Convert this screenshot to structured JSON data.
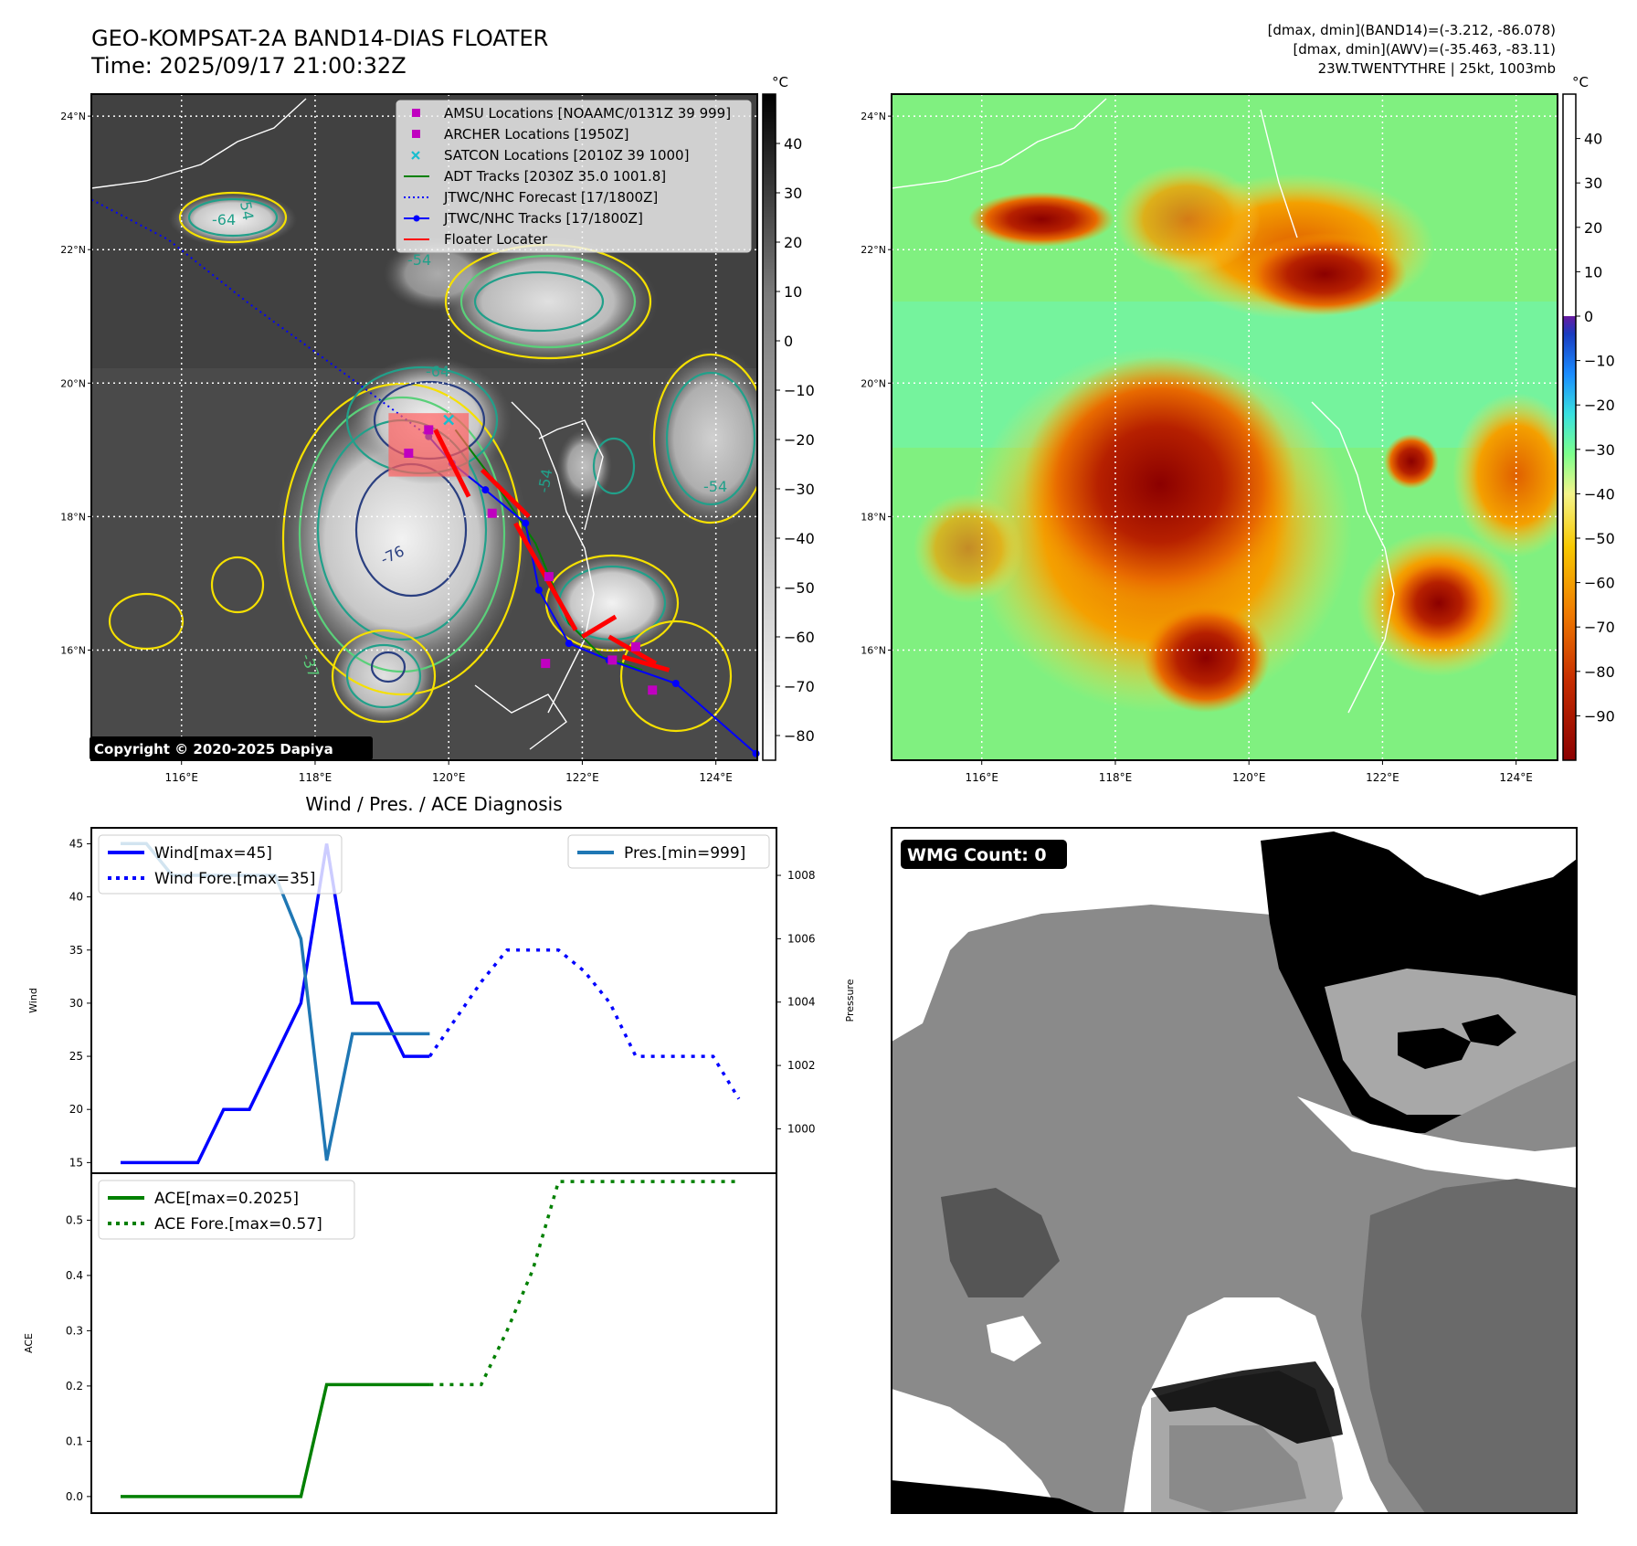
{
  "header": {
    "title_line1": "GEO-KOMPSAT-2A BAND14-DIAS FLOATER",
    "title_line2": "Time: 2025/09/17 21:00:32Z",
    "info_line1": "[dmax, dmin](BAND14)=(-3.212, -86.078)",
    "info_line2": "[dmax, dmin](AWV)=(-35.463, -83.11)",
    "info_line3": "23W.TWENTYTHRE | 25kt, 1003mb"
  },
  "map_axes": {
    "lat_labels": [
      "24°N",
      "22°N",
      "20°N",
      "18°N",
      "16°N"
    ],
    "lat_values": [
      24,
      22,
      20,
      18,
      16
    ],
    "lon_labels": [
      "116°E",
      "118°E",
      "120°E",
      "122°E",
      "124°E"
    ],
    "lon_values": [
      116,
      118,
      120,
      122,
      124
    ],
    "lon_range": [
      114.65,
      124.62
    ],
    "lat_range": [
      14.35,
      24.33
    ]
  },
  "colors": {
    "amsu": "#c000c0",
    "archer": "#c000c0",
    "satcon": "#17becf",
    "adt": "#008000",
    "jtwc": "#0000ff",
    "floater": "#ff0000",
    "wind": "#0000ff",
    "pres": "#1f77b4",
    "ace": "#008000",
    "copyright_bg": "#000000"
  },
  "ir_panel": {
    "legend": [
      {
        "label": "AMSU Locations [NOAAMC/0131Z 39 999]",
        "marker": "square",
        "color": "#c000c0"
      },
      {
        "label": "ARCHER Locations [1950Z]",
        "marker": "square",
        "color": "#c000c0"
      },
      {
        "label": "SATCON Locations [2010Z 39 1000]",
        "marker": "x",
        "color": "#17becf"
      },
      {
        "label": "ADT Tracks [2030Z 35.0 1001.8]",
        "marker": "line",
        "color": "#008000"
      },
      {
        "label": "JTWC/NHC Forecast [17/1800Z]",
        "marker": "dotted",
        "color": "#0000ff"
      },
      {
        "label": "JTWC/NHC Tracks [17/1800Z]",
        "marker": "line-dot",
        "color": "#0000ff"
      },
      {
        "label": "Floater Locater",
        "marker": "line",
        "color": "#ff0000"
      }
    ],
    "colorbar_unit": "°C",
    "colorbar_ticks": [
      "40",
      "30",
      "20",
      "10",
      "0",
      "−10",
      "−20",
      "−30",
      "−40",
      "−50",
      "−60",
      "−70",
      "−80"
    ],
    "colorbar_values": [
      40,
      30,
      20,
      10,
      0,
      -10,
      -20,
      -30,
      -40,
      -50,
      -60,
      -70,
      -80
    ],
    "colorbar_range": [
      -85,
      50
    ],
    "contour_labels": [
      "-64",
      "-54",
      "-54",
      "-54",
      "-64",
      "-76",
      "-54",
      "-37"
    ],
    "copyright": "Copyright © 2020-2025 Dapiya",
    "jtwc_track": [
      [
        124.6,
        14.45
      ],
      [
        123.4,
        15.5
      ],
      [
        122.4,
        15.85
      ],
      [
        121.8,
        16.1
      ],
      [
        121.35,
        16.9
      ],
      [
        121.15,
        17.9
      ],
      [
        120.55,
        18.4
      ],
      [
        120.05,
        18.8
      ],
      [
        119.7,
        19.2
      ]
    ],
    "jtwc_forecast": [
      [
        119.7,
        19.2
      ],
      [
        118.5,
        20.1
      ],
      [
        117.0,
        21.2
      ],
      [
        115.8,
        22.15
      ],
      [
        114.65,
        22.75
      ]
    ],
    "adt_track": [
      [
        120.1,
        19.3
      ],
      [
        120.7,
        18.5
      ],
      [
        121.3,
        17.6
      ],
      [
        121.8,
        16.4
      ],
      [
        122.3,
        15.9
      ],
      [
        122.9,
        15.7
      ]
    ],
    "amsu_points": [
      [
        119.4,
        18.95
      ],
      [
        120.65,
        18.05
      ],
      [
        121.5,
        17.1
      ],
      [
        122.45,
        15.85
      ],
      [
        121.45,
        15.8
      ],
      [
        123.05,
        15.4
      ]
    ],
    "archer_points": [
      [
        119.7,
        19.3
      ],
      [
        122.8,
        16.05
      ]
    ],
    "satcon_points": [
      [
        120.0,
        19.45
      ]
    ],
    "floater_segments": [
      [
        [
          119.8,
          19.3
        ],
        [
          120.3,
          18.3
        ]
      ],
      [
        [
          120.5,
          18.7
        ],
        [
          121.2,
          18.0
        ]
      ],
      [
        [
          121.0,
          17.9
        ],
        [
          121.9,
          16.3
        ]
      ],
      [
        [
          122.0,
          16.2
        ],
        [
          122.5,
          16.5
        ]
      ],
      [
        [
          122.4,
          16.2
        ],
        [
          123.1,
          15.8
        ]
      ],
      [
        [
          122.6,
          15.9
        ],
        [
          123.3,
          15.7
        ]
      ]
    ]
  },
  "awv_panel": {
    "colorbar_unit": "°C",
    "colorbar_ticks": [
      "40",
      "30",
      "20",
      "10",
      "0",
      "−10",
      "−20",
      "−30",
      "−40",
      "−50",
      "−60",
      "−70",
      "−80",
      "−90"
    ],
    "colorbar_values": [
      40,
      30,
      20,
      10,
      0,
      -10,
      -20,
      -30,
      -40,
      -50,
      -60,
      -70,
      -80,
      -90
    ],
    "colorbar_range": [
      -100,
      50
    ]
  },
  "wmg_panel": {
    "badge": "WMG Count: 0"
  },
  "chart_data": [
    {
      "type": "line",
      "title": "Wind / Pres. / ACE Diagnosis",
      "ylabel": "Wind",
      "ylim": [
        14,
        46.5
      ],
      "yticks": [
        15,
        20,
        25,
        30,
        35,
        40,
        45
      ],
      "y2label": "Pressure",
      "y2lim": [
        998.6,
        1009.5
      ],
      "y2ticks": [
        1000,
        1002,
        1004,
        1006,
        1008
      ],
      "x": [
        0,
        3,
        4,
        5,
        6,
        7,
        8,
        9,
        10,
        11,
        12,
        13,
        14,
        15,
        16,
        17,
        18,
        19,
        20,
        21,
        22,
        23,
        24
      ],
      "series": [
        {
          "name": "Wind[max=45]",
          "axis": "left",
          "style": "solid",
          "x": [
            0,
            1,
            2,
            3,
            4,
            5,
            6,
            7,
            8,
            9,
            10,
            11,
            12
          ],
          "values": [
            15,
            15,
            15,
            15,
            20,
            20,
            25,
            30,
            45,
            30,
            30,
            25,
            25
          ]
        },
        {
          "name": "Wind Fore.[max=35]",
          "axis": "left",
          "style": "dotted",
          "x": [
            12,
            13,
            14,
            15,
            16,
            17,
            18,
            19,
            20,
            21,
            22,
            23,
            24
          ],
          "values": [
            25,
            28.5,
            32,
            35,
            35,
            35,
            33,
            30,
            25,
            25,
            25,
            25,
            21
          ]
        },
        {
          "name": "Pres.[min=999]",
          "axis": "right",
          "style": "solid",
          "x": [
            0,
            1,
            2,
            3,
            4,
            5,
            6,
            7,
            8,
            9,
            10,
            11,
            12
          ],
          "values": [
            1009,
            1009,
            1008,
            1008,
            1008,
            1008,
            1008,
            1006,
            999,
            1003,
            1003,
            1003,
            1003
          ]
        }
      ]
    },
    {
      "type": "line",
      "ylabel": "ACE",
      "ylim": [
        -0.03,
        0.585
      ],
      "yticks": [
        0.0,
        0.1,
        0.2,
        0.3,
        0.4,
        0.5
      ],
      "ytick_labels": [
        "0.0",
        "0.1",
        "0.2",
        "0.3",
        "0.4",
        "0.5"
      ],
      "series": [
        {
          "name": "ACE[max=0.2025]",
          "style": "solid",
          "x": [
            0,
            1,
            2,
            3,
            4,
            5,
            6,
            7,
            8,
            9,
            10,
            11,
            12
          ],
          "values": [
            0,
            0,
            0,
            0,
            0,
            0,
            0,
            0,
            0.2025,
            0.2025,
            0.2025,
            0.2025,
            0.2025
          ]
        },
        {
          "name": "ACE Fore.[max=0.57]",
          "style": "dotted",
          "x": [
            12,
            13,
            14,
            15,
            16,
            17,
            18,
            19,
            20,
            21,
            22,
            23,
            24
          ],
          "values": [
            0.2025,
            0.2025,
            0.2025,
            0.3,
            0.41,
            0.57,
            0.57,
            0.57,
            0.57,
            0.57,
            0.57,
            0.57,
            0.57
          ]
        }
      ]
    }
  ]
}
